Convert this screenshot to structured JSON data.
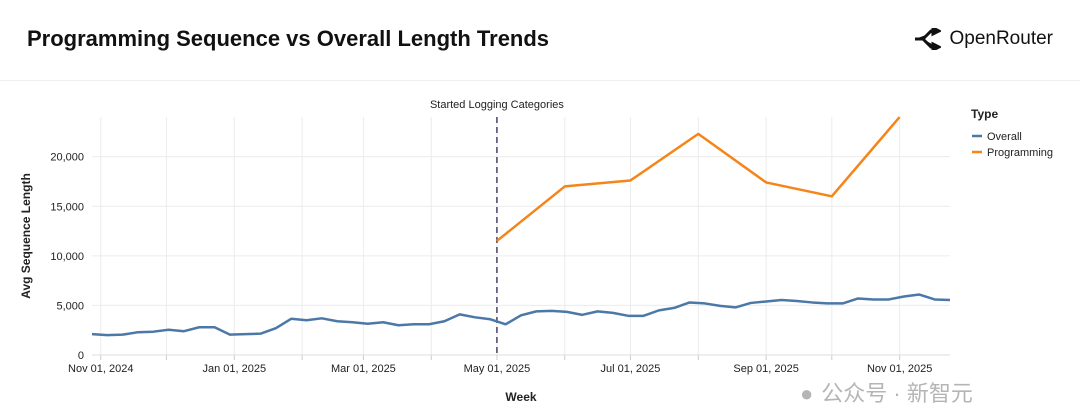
{
  "header": {
    "title": "Programming Sequence vs Overall Length Trends",
    "brand": "OpenRouter",
    "brand_icon": "openrouter-logo-icon"
  },
  "watermark": {
    "text": "公众号 · 新智元",
    "icon": "wechat-icon"
  },
  "chart_data": {
    "type": "line",
    "title": "",
    "xlabel": "Week",
    "ylabel": "Avg Sequence Length",
    "ylim": [
      0,
      24000
    ],
    "xlim": [
      "2024-10-28",
      "2025-11-24"
    ],
    "yticks": [
      0,
      5000,
      10000,
      15000,
      20000
    ],
    "ytick_labels": [
      "0",
      "5,000",
      "10,000",
      "15,000",
      "20,000"
    ],
    "xticks": [
      "2024-11-01",
      "2025-01-01",
      "2025-03-01",
      "2025-05-01",
      "2025-07-01",
      "2025-09-01",
      "2025-11-01"
    ],
    "xtick_labels": [
      "Nov 01, 2024",
      "Jan 01, 2025",
      "Mar 01, 2025",
      "May 01, 2025",
      "Jul 01, 2025",
      "Sep 01, 2025",
      "Nov 01, 2025"
    ],
    "grid": true,
    "legend": {
      "title": "Type",
      "placement": "right"
    },
    "annotation": {
      "x": "2025-05-01",
      "label": "Started Logging Categories",
      "style": "dashed"
    },
    "series": [
      {
        "name": "Overall",
        "color": "#4c78a8",
        "x": [
          "2024-10-28",
          "2024-11-04",
          "2024-11-11",
          "2024-11-18",
          "2024-11-25",
          "2024-12-02",
          "2024-12-09",
          "2024-12-16",
          "2024-12-23",
          "2024-12-30",
          "2025-01-06",
          "2025-01-13",
          "2025-01-20",
          "2025-01-27",
          "2025-02-03",
          "2025-02-10",
          "2025-02-17",
          "2025-02-24",
          "2025-03-03",
          "2025-03-10",
          "2025-03-17",
          "2025-03-24",
          "2025-03-31",
          "2025-04-07",
          "2025-04-14",
          "2025-04-21",
          "2025-04-28",
          "2025-05-05",
          "2025-05-12",
          "2025-05-19",
          "2025-05-26",
          "2025-06-02",
          "2025-06-09",
          "2025-06-16",
          "2025-06-23",
          "2025-06-30",
          "2025-07-07",
          "2025-07-14",
          "2025-07-21",
          "2025-07-28",
          "2025-08-04",
          "2025-08-11",
          "2025-08-18",
          "2025-08-25",
          "2025-09-01",
          "2025-09-08",
          "2025-09-15",
          "2025-09-22",
          "2025-09-29",
          "2025-10-06",
          "2025-10-13",
          "2025-10-20",
          "2025-10-27",
          "2025-11-03",
          "2025-11-10",
          "2025-11-17",
          "2025-11-24"
        ],
        "y": [
          2100,
          2000,
          2050,
          2300,
          2350,
          2550,
          2400,
          2800,
          2800,
          2050,
          2100,
          2150,
          2700,
          3650,
          3500,
          3700,
          3400,
          3300,
          3150,
          3300,
          3000,
          3100,
          3100,
          3400,
          4100,
          3800,
          3600,
          3100,
          4000,
          4400,
          4450,
          4350,
          4050,
          4400,
          4250,
          3950,
          3950,
          4500,
          4750,
          5300,
          5200,
          4950,
          4800,
          5250,
          5400,
          5550,
          5450,
          5300,
          5200,
          5200,
          5700,
          5600,
          5600,
          5900,
          6100,
          5600,
          5550
        ]
      },
      {
        "name": "Programming",
        "color": "#f58518",
        "x": [
          "2025-05-01",
          "2025-06-01",
          "2025-07-01",
          "2025-08-01",
          "2025-09-01",
          "2025-10-01",
          "2025-11-01"
        ],
        "y": [
          11500,
          17000,
          17600,
          22300,
          17400,
          16000,
          24000
        ]
      }
    ]
  }
}
